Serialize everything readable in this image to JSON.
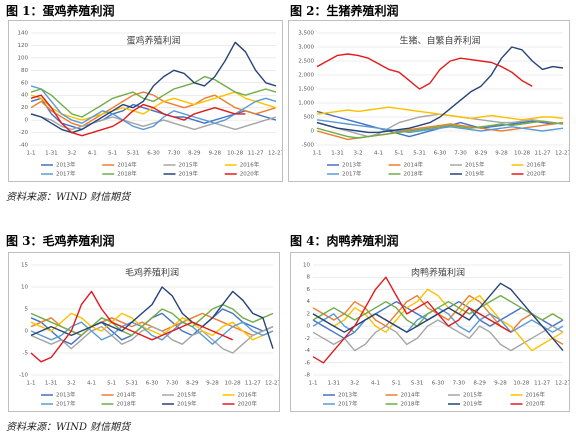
{
  "captions": [
    "图 1：蛋鸡养殖利润",
    "图 2：生猪养殖利润",
    "图 3：毛鸡养殖利润",
    "图 4：肉鸭养殖利润"
  ],
  "sources": [
    "资料来源：WIND 财信期货",
    "资料来源：WIND 财信期货"
  ],
  "chart_data": [
    {
      "type": "line",
      "title": "蛋鸡养殖利润",
      "categories": [
        "1-1",
        null,
        "1-31",
        null,
        "3-2",
        null,
        "4-1",
        null,
        "5-1",
        null,
        "5-31",
        null,
        "6-30",
        null,
        "7-30",
        null,
        "8-29",
        null,
        "9-28",
        null,
        "10-28",
        null,
        "11-27",
        null,
        "12-27"
      ],
      "ylim": [
        -40,
        140
      ],
      "yticks": [
        -40,
        -20,
        0,
        20,
        40,
        60,
        80,
        100,
        120,
        140
      ],
      "grid": true,
      "legend": "bottom",
      "series": [
        {
          "name": "2013年",
          "color": "#4472c4",
          "values": [
            30,
            35,
            10,
            -5,
            -10,
            -15,
            -5,
            0,
            10,
            15,
            25,
            20,
            15,
            10,
            5,
            5,
            0,
            -5,
            0,
            5,
            10,
            15,
            10,
            5,
            0
          ]
        },
        {
          "name": "2014年",
          "color": "#ed7d31",
          "values": [
            20,
            30,
            15,
            5,
            -5,
            -10,
            0,
            10,
            20,
            30,
            40,
            45,
            40,
            30,
            25,
            20,
            25,
            35,
            40,
            30,
            20,
            15,
            10,
            15,
            20
          ]
        },
        {
          "name": "2015年",
          "color": "#a5a5a5",
          "values": [
            10,
            5,
            0,
            -10,
            -15,
            -10,
            -5,
            0,
            5,
            0,
            -5,
            -10,
            -5,
            0,
            -5,
            -10,
            -15,
            -10,
            -5,
            -10,
            -15,
            -10,
            -5,
            0,
            5
          ]
        },
        {
          "name": "2016年",
          "color": "#ffc000",
          "values": [
            40,
            35,
            20,
            10,
            5,
            0,
            5,
            10,
            15,
            20,
            15,
            10,
            20,
            30,
            35,
            30,
            25,
            30,
            35,
            40,
            45,
            35,
            30,
            25,
            20
          ]
        },
        {
          "name": "2017年",
          "color": "#5b9bd5",
          "values": [
            55,
            50,
            30,
            10,
            0,
            -5,
            5,
            15,
            10,
            0,
            -10,
            -15,
            -10,
            5,
            15,
            10,
            5,
            0,
            -5,
            0,
            10,
            20,
            30,
            35,
            30
          ]
        },
        {
          "name": "2018年",
          "color": "#70ad47",
          "values": [
            45,
            50,
            40,
            25,
            10,
            5,
            15,
            25,
            35,
            40,
            45,
            35,
            30,
            40,
            50,
            55,
            60,
            70,
            65,
            55,
            45,
            40,
            45,
            50,
            45
          ]
        },
        {
          "name": "2019年",
          "color": "#264478",
          "values": [
            10,
            5,
            -5,
            -15,
            -20,
            -15,
            -5,
            5,
            15,
            25,
            20,
            30,
            55,
            70,
            80,
            75,
            60,
            55,
            70,
            95,
            125,
            110,
            80,
            60,
            55
          ]
        },
        {
          "name": "2020年",
          "color": "#e31a1c",
          "values": [
            35,
            40,
            20,
            -5,
            -20,
            -25,
            -20,
            -15,
            -10,
            0,
            15,
            25,
            20,
            10,
            5,
            0,
            10,
            15,
            20,
            15,
            10,
            10,
            null,
            null,
            null
          ]
        }
      ]
    },
    {
      "type": "line",
      "title": "生猪、自繁自养利润",
      "categories": [
        "1-1",
        null,
        "1-31",
        null,
        "3-2",
        null,
        "4-1",
        null,
        "5-1",
        null,
        "5-31",
        null,
        "6-30",
        null,
        "7-30",
        null,
        "8-29",
        null,
        "9-28",
        null,
        "10-28",
        null,
        "11-27",
        null,
        "12-27"
      ],
      "ylim": [
        -500,
        3500
      ],
      "yticks": [
        -500,
        0,
        500,
        {
          "value": 1000,
          "label": "1,000"
        },
        {
          "value": 1500,
          "label": "1,500"
        },
        {
          "value": 2000,
          "label": "2,000"
        },
        {
          "value": 2500,
          "label": "2,500"
        },
        {
          "value": 3000,
          "label": "3,000"
        },
        {
          "value": 3500,
          "label": "3,500"
        }
      ],
      "grid": true,
      "legend": "bottom",
      "series": [
        {
          "name": "2013年",
          "color": "#4472c4",
          "values": [
            700,
            600,
            500,
            400,
            300,
            200,
            100,
            0,
            -100,
            -200,
            -100,
            0,
            100,
            200,
            300,
            200,
            100,
            150,
            200,
            250,
            300,
            350,
            300,
            250,
            300
          ]
        },
        {
          "name": "2014年",
          "color": "#ed7d31",
          "values": [
            0,
            -100,
            -200,
            -300,
            -250,
            -200,
            -150,
            -100,
            0,
            50,
            100,
            150,
            200,
            250,
            200,
            150,
            100,
            50,
            0,
            50,
            100,
            150,
            200,
            250,
            300
          ]
        },
        {
          "name": "2015年",
          "color": "#a5a5a5",
          "values": [
            300,
            200,
            100,
            0,
            -100,
            -200,
            -100,
            100,
            300,
            400,
            500,
            550,
            600,
            550,
            500,
            450,
            400,
            350,
            300,
            300,
            350,
            400,
            350,
            300,
            250
          ]
        },
        {
          "name": "2016年",
          "color": "#ffc000",
          "values": [
            600,
            650,
            700,
            750,
            700,
            750,
            800,
            850,
            800,
            750,
            700,
            650,
            600,
            550,
            500,
            450,
            500,
            550,
            500,
            450,
            400,
            450,
            500,
            500,
            450
          ]
        },
        {
          "name": "2017年",
          "color": "#5b9bd5",
          "values": [
            400,
            350,
            300,
            250,
            200,
            150,
            100,
            50,
            0,
            -50,
            0,
            50,
            100,
            150,
            100,
            50,
            0,
            50,
            100,
            150,
            100,
            50,
            0,
            50,
            100
          ]
        },
        {
          "name": "2018年",
          "color": "#70ad47",
          "values": [
            100,
            0,
            -100,
            -200,
            -250,
            -200,
            -150,
            -100,
            -50,
            0,
            50,
            100,
            150,
            200,
            150,
            100,
            150,
            200,
            250,
            200,
            250,
            300,
            350,
            300,
            250
          ]
        },
        {
          "name": "2019年",
          "color": "#264478",
          "values": [
            300,
            200,
            100,
            50,
            0,
            -50,
            -50,
            0,
            50,
            100,
            200,
            300,
            500,
            800,
            1100,
            1400,
            1600,
            2000,
            2600,
            3000,
            2900,
            2500,
            2200,
            2300,
            2250
          ]
        },
        {
          "name": "2020年",
          "color": "#e31a1c",
          "values": [
            2300,
            2500,
            2700,
            2750,
            2700,
            2600,
            2400,
            2200,
            2100,
            1800,
            1500,
            1700,
            2200,
            2500,
            2600,
            2550,
            2500,
            2450,
            2300,
            2100,
            1800,
            1600,
            null,
            null,
            null
          ]
        }
      ]
    },
    {
      "type": "line",
      "title": "毛鸡养殖利润",
      "categories": [
        "1-1",
        null,
        "1-31",
        null,
        "3-2",
        null,
        "4-1",
        null,
        "5-1",
        null,
        "5-31",
        null,
        "6-30",
        null,
        "7-30",
        null,
        "8-29",
        null,
        "9-28",
        null,
        "10-28",
        null,
        "11-27",
        null,
        "12-27"
      ],
      "ylim": [
        -10,
        15
      ],
      "yticks": [
        -10,
        -5,
        0,
        5,
        10,
        15
      ],
      "grid": true,
      "legend": "bottom",
      "series": [
        {
          "name": "2013年",
          "color": "#4472c4",
          "values": [
            3,
            2,
            0,
            -2,
            -3,
            -1,
            1,
            2,
            0,
            -2,
            -1,
            1,
            3,
            4,
            2,
            0,
            -1,
            1,
            3,
            5,
            4,
            2,
            1,
            0,
            1
          ]
        },
        {
          "name": "2014年",
          "color": "#ed7d31",
          "values": [
            1,
            2,
            3,
            1,
            0,
            -1,
            1,
            2,
            3,
            2,
            1,
            2,
            1,
            0,
            1,
            2,
            3,
            4,
            3,
            2,
            1,
            0,
            -1,
            0,
            1
          ]
        },
        {
          "name": "2015年",
          "color": "#a5a5a5",
          "values": [
            -1,
            -2,
            -3,
            -2,
            -4,
            -2,
            0,
            1,
            -1,
            -3,
            -2,
            0,
            1,
            0,
            -2,
            -3,
            -1,
            0,
            -2,
            -4,
            -5,
            -3,
            -1,
            0,
            1
          ]
        },
        {
          "name": "2016年",
          "color": "#ffc000",
          "values": [
            2,
            1,
            0,
            2,
            4,
            3,
            1,
            0,
            2,
            4,
            3,
            1,
            0,
            -1,
            1,
            3,
            2,
            0,
            -1,
            1,
            2,
            0,
            -2,
            -1,
            0
          ]
        },
        {
          "name": "2017年",
          "color": "#5b9bd5",
          "values": [
            0,
            -1,
            -2,
            -1,
            1,
            2,
            0,
            -2,
            -1,
            1,
            2,
            1,
            -1,
            -2,
            0,
            2,
            1,
            -1,
            -3,
            -1,
            1,
            2,
            0,
            -1,
            0
          ]
        },
        {
          "name": "2018年",
          "color": "#70ad47",
          "values": [
            4,
            3,
            2,
            1,
            0,
            -1,
            1,
            3,
            2,
            0,
            -1,
            1,
            3,
            5,
            4,
            2,
            1,
            3,
            5,
            6,
            5,
            3,
            2,
            3,
            4
          ]
        },
        {
          "name": "2019年",
          "color": "#264478",
          "values": [
            -1,
            0,
            1,
            0,
            -1,
            0,
            1,
            2,
            1,
            0,
            2,
            4,
            6,
            10,
            8,
            4,
            2,
            1,
            3,
            6,
            9,
            7,
            4,
            3,
            -4
          ]
        },
        {
          "name": "2020年",
          "color": "#e31a1c",
          "values": [
            -5,
            -7,
            -6,
            -3,
            0,
            6,
            9,
            5,
            2,
            1,
            0,
            -1,
            -2,
            -1,
            0,
            1,
            2,
            1,
            0,
            -1,
            -2,
            null,
            null,
            null,
            null
          ]
        }
      ]
    },
    {
      "type": "line",
      "title": "肉鸭养殖利润",
      "categories": [
        "1-1",
        null,
        "1-31",
        null,
        "3-2",
        null,
        "4-1",
        null,
        "5-1",
        null,
        "5-31",
        null,
        "6-30",
        null,
        "7-30",
        null,
        "8-29",
        null,
        "9-28",
        null,
        "10-28",
        null,
        "11-27",
        null,
        "12-27"
      ],
      "ylim": [
        -8,
        10
      ],
      "yticks": [
        -8,
        -6,
        -4,
        -2,
        0,
        2,
        4,
        6,
        8,
        10
      ],
      "grid": true,
      "legend": "bottom",
      "series": [
        {
          "name": "2013年",
          "color": "#4472c4",
          "values": [
            1,
            0,
            -1,
            -2,
            -1,
            1,
            2,
            3,
            4,
            3,
            2,
            1,
            2,
            3,
            4,
            3,
            1,
            0,
            1,
            2,
            3,
            2,
            1,
            0,
            1
          ]
        },
        {
          "name": "2014年",
          "color": "#ed7d31",
          "values": [
            3,
            2,
            1,
            2,
            4,
            3,
            1,
            0,
            2,
            4,
            5,
            3,
            2,
            1,
            3,
            5,
            4,
            2,
            0,
            -1,
            1,
            2,
            0,
            -2,
            -3
          ]
        },
        {
          "name": "2015年",
          "color": "#a5a5a5",
          "values": [
            -1,
            -2,
            -3,
            -2,
            -4,
            -3,
            -1,
            0,
            -1,
            -3,
            -2,
            0,
            1,
            0,
            -1,
            -2,
            0,
            -1,
            -3,
            -4,
            -3,
            -2,
            -1,
            0,
            -1
          ]
        },
        {
          "name": "2016年",
          "color": "#ffc000",
          "values": [
            2,
            1,
            0,
            1,
            3,
            2,
            0,
            -1,
            1,
            3,
            4,
            6,
            5,
            3,
            2,
            4,
            5,
            3,
            1,
            0,
            -2,
            -4,
            -3,
            -2,
            -1
          ]
        },
        {
          "name": "2017年",
          "color": "#5b9bd5",
          "values": [
            0,
            1,
            2,
            0,
            -1,
            1,
            2,
            1,
            0,
            -1,
            1,
            2,
            3,
            2,
            0,
            -1,
            1,
            2,
            1,
            -1,
            0,
            1,
            0,
            -1,
            0
          ]
        },
        {
          "name": "2018年",
          "color": "#70ad47",
          "values": [
            1,
            2,
            3,
            2,
            1,
            2,
            3,
            4,
            3,
            1,
            0,
            2,
            3,
            4,
            3,
            2,
            3,
            4,
            5,
            4,
            3,
            2,
            1,
            2,
            1
          ]
        },
        {
          "name": "2019年",
          "color": "#264478",
          "values": [
            2,
            1,
            0,
            -1,
            0,
            1,
            2,
            1,
            0,
            -1,
            0,
            1,
            2,
            3,
            2,
            1,
            3,
            5,
            7,
            6,
            4,
            2,
            0,
            -2,
            -4
          ]
        },
        {
          "name": "2020年",
          "color": "#e31a1c",
          "values": [
            -5,
            -6,
            -4,
            -2,
            0,
            3,
            6,
            8,
            5,
            2,
            3,
            4,
            2,
            0,
            1,
            3,
            2,
            1,
            0,
            -1,
            null,
            null,
            null,
            null,
            null
          ]
        }
      ]
    }
  ]
}
